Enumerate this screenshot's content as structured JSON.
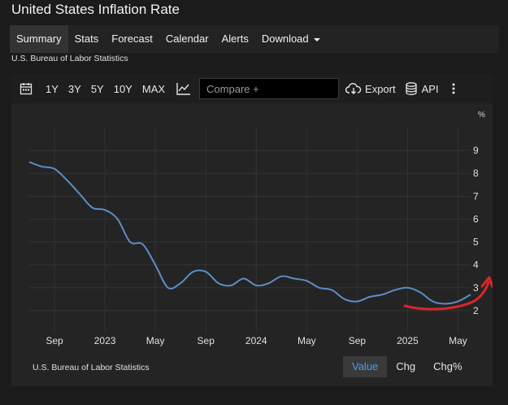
{
  "page": {
    "title": "United States Inflation Rate",
    "source": "U.S. Bureau of Labor Statistics"
  },
  "nav": {
    "items": [
      "Summary",
      "Stats",
      "Forecast",
      "Calendar",
      "Alerts",
      "Download"
    ],
    "active": "Summary"
  },
  "toolbar": {
    "ranges": [
      "1Y",
      "3Y",
      "5Y",
      "10Y",
      "MAX"
    ],
    "compare_placeholder": "Compare +",
    "export_label": "Export",
    "api_label": "API"
  },
  "chart_data": {
    "type": "line",
    "ylabel": "%",
    "ylim": [
      1,
      10
    ],
    "yticks": [
      2,
      3,
      4,
      5,
      6,
      7,
      8,
      9
    ],
    "x_labels": [
      "Sep",
      "2023",
      "May",
      "Sep",
      "2024",
      "May",
      "Sep",
      "2025",
      "May"
    ],
    "x": [
      "2022-07",
      "2022-08",
      "2022-09",
      "2022-10",
      "2022-11",
      "2022-12",
      "2023-01",
      "2023-02",
      "2023-03",
      "2023-04",
      "2023-05",
      "2023-06",
      "2023-07",
      "2023-08",
      "2023-09",
      "2023-10",
      "2023-11",
      "2023-12",
      "2024-01",
      "2024-02",
      "2024-03",
      "2024-04",
      "2024-05",
      "2024-06",
      "2024-07",
      "2024-08",
      "2024-09",
      "2024-10",
      "2024-11",
      "2024-12",
      "2025-01",
      "2025-02",
      "2025-03",
      "2025-04",
      "2025-05",
      "2025-06"
    ],
    "values": [
      8.5,
      8.3,
      8.2,
      7.7,
      7.1,
      6.5,
      6.4,
      6.0,
      5.0,
      4.9,
      4.0,
      3.0,
      3.2,
      3.7,
      3.7,
      3.2,
      3.1,
      3.4,
      3.1,
      3.2,
      3.5,
      3.4,
      3.3,
      3.0,
      2.9,
      2.5,
      2.4,
      2.6,
      2.7,
      2.9,
      3.0,
      2.8,
      2.4,
      2.3,
      2.4,
      2.7
    ],
    "grid": true,
    "line_color": "#5b8ec7",
    "annotation_color": "#d9262c"
  },
  "footer": {
    "source": "U.S. Bureau of Labor Statistics",
    "buttons": [
      "Value",
      "Chg",
      "Chg%"
    ],
    "active": "Value"
  },
  "colors": {
    "background": "#1b1b1b",
    "panel": "#242424",
    "accent": "#4a9ce6"
  }
}
